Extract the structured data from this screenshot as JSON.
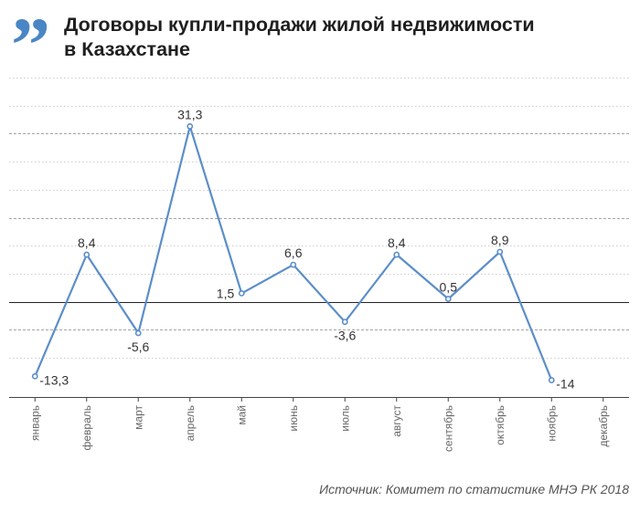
{
  "header": {
    "logo_glyph": "”",
    "title_line1": "Договоры купли-продажи жилой недвижимости",
    "title_line2": "в Казахстане"
  },
  "source": "Источник: Комитет по статистике МНЭ РК 2018",
  "colors": {
    "line": "#5b8ec9",
    "logo": "#4a86c5",
    "grid": "#bdbdbd",
    "zero_line": "#222222",
    "text": "#333333",
    "axis_labels": "#666666"
  },
  "chart_data": {
    "type": "line",
    "title": "Договоры купли-продажи жилой недвижимости в Казахстане",
    "categories": [
      "январь",
      "февраль",
      "март",
      "апрель",
      "май",
      "июнь",
      "июль",
      "август",
      "сентябрь",
      "октябрь",
      "ноябрь",
      "декабрь"
    ],
    "values": [
      -13.3,
      8.4,
      -5.6,
      31.3,
      1.5,
      6.6,
      -3.6,
      8.4,
      0.5,
      8.9,
      -14
    ],
    "labels": [
      "-13,3",
      "8,4",
      "-5,6",
      "31,3",
      "1,5",
      "6,6",
      "-3,6",
      "8,4",
      "0,5",
      "8,9",
      "-14"
    ],
    "label_positions": [
      "right",
      "above",
      "below",
      "above",
      "left",
      "above",
      "below",
      "above",
      "above",
      "above",
      "right"
    ],
    "ylim": [
      -17,
      40
    ],
    "gridlines": [
      -10,
      -5,
      0,
      5,
      10,
      15,
      20,
      25,
      30,
      35,
      40
    ],
    "dashed_gridlines": [
      -5,
      15,
      30
    ],
    "grid": true,
    "legend": "none"
  }
}
